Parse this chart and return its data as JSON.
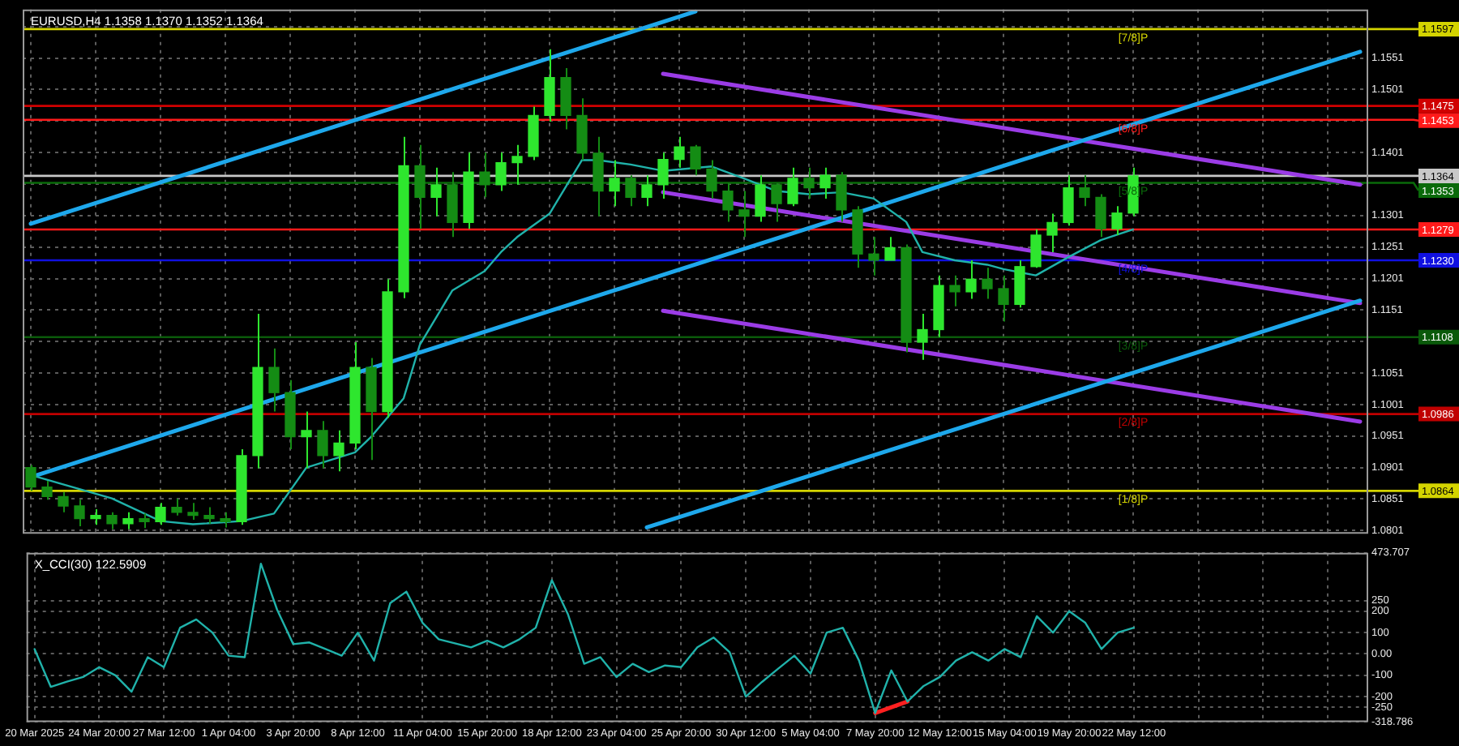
{
  "chart_data": [
    {
      "type": "candlestick",
      "title": "EURUSD,H4 1.1358 1.1370 1.1352 1.1364",
      "categories": [
        "20 Mar 2025",
        null,
        null,
        null,
        "24 Mar 20:00",
        null,
        null,
        null,
        "27 Mar 12:00",
        null,
        null,
        null,
        "1 Apr 04:00",
        null,
        null,
        null,
        "3 Apr 20:00",
        null,
        null,
        null,
        "8 Apr 12:00",
        null,
        null,
        null,
        "11 Apr 04:00",
        null,
        null,
        null,
        "15 Apr 20:00",
        null,
        null,
        null,
        "18 Apr 12:00",
        null,
        null,
        null,
        "23 Apr 04:00",
        null,
        null,
        null,
        "25 Apr 20:00",
        null,
        null,
        null,
        "30 Apr 12:00",
        null,
        null,
        null,
        "5 May 04:00",
        null,
        null,
        null,
        "7 May 20:00",
        null,
        null,
        null,
        "12 May 12:00",
        null,
        null,
        null,
        "15 May 04:00",
        null,
        null,
        null,
        "19 May 20:00",
        null,
        null,
        null,
        "22 May 12:00",
        null,
        null,
        null,
        null,
        null,
        null,
        null,
        null,
        null,
        null,
        null,
        null,
        null,
        null
      ],
      "colors": [
        "#148c14",
        "#148c14",
        "#148c14",
        "#148c14",
        "#2ee62e",
        "#148c14",
        "#2ee62e",
        "#148c14",
        "#2ee62e",
        "#148c14",
        "#148c14",
        "#148c14",
        "#148c14",
        "#2ee62e",
        "#2ee62e",
        "#148c14",
        "#148c14",
        "#2ee62e",
        "#148c14",
        "#2ee62e",
        "#2ee62e",
        "#148c14",
        "#2ee62e",
        "#2ee62e",
        "#148c14",
        "#2ee62e",
        "#148c14",
        "#2ee62e",
        "#148c14",
        "#2ee62e",
        "#2ee62e",
        "#2ee62e",
        "#2ee62e",
        "#148c14",
        "#148c14",
        "#148c14",
        "#2ee62e",
        "#148c14",
        "#2ee62e",
        "#2ee62e",
        "#2ee62e",
        "#148c14",
        "#148c14",
        "#148c14",
        "#148c14",
        "#2ee62e",
        "#148c14",
        "#2ee62e",
        "#148c14",
        "#2ee62e",
        "#148c14",
        "#148c14",
        "#148c14",
        "#2ee62e",
        "#148c14",
        "#2ee62e",
        "#2ee62e",
        "#148c14",
        "#2ee62e",
        "#148c14",
        "#148c14",
        "#2ee62e",
        "#2ee62e",
        "#2ee62e",
        "#2ee62e",
        "#148c14",
        "#148c14",
        "#2ee62e",
        "#2ee62e",
        null,
        null,
        null,
        null,
        null,
        null,
        null,
        null,
        null,
        null,
        null,
        null,
        null,
        null
      ],
      "ohlc": [
        [
          1.0901,
          1.0905,
          1.0864,
          1.087
        ],
        [
          1.087,
          1.088,
          1.085,
          1.0855
        ],
        [
          1.0855,
          1.0862,
          1.083,
          1.084
        ],
        [
          1.084,
          1.085,
          1.0808,
          1.082
        ],
        [
          1.082,
          1.0835,
          1.081,
          1.0825
        ],
        [
          1.0825,
          1.083,
          1.0803,
          1.0812
        ],
        [
          1.0812,
          1.083,
          1.0803,
          1.082
        ],
        [
          1.082,
          1.0828,
          1.0805,
          1.0815
        ],
        [
          1.0815,
          1.0845,
          1.081,
          1.0838
        ],
        [
          1.0838,
          1.0852,
          1.0825,
          1.083
        ],
        [
          1.083,
          1.0845,
          1.0818,
          1.0825
        ],
        [
          1.0825,
          1.0838,
          1.0812,
          1.082
        ],
        [
          1.082,
          1.083,
          1.0806,
          1.0815
        ],
        [
          1.0815,
          1.093,
          1.081,
          1.092
        ],
        [
          1.092,
          1.1145,
          1.09,
          1.106
        ],
        [
          1.106,
          1.109,
          1.099,
          1.102
        ],
        [
          1.102,
          1.104,
          1.093,
          1.095
        ],
        [
          1.095,
          1.099,
          1.09,
          1.096
        ],
        [
          1.096,
          1.0975,
          1.09,
          1.092
        ],
        [
          1.092,
          1.096,
          1.0895,
          1.094
        ],
        [
          1.094,
          1.11,
          1.093,
          1.106
        ],
        [
          1.106,
          1.1075,
          1.0913,
          1.099
        ],
        [
          1.099,
          1.12,
          1.098,
          1.118
        ],
        [
          1.118,
          1.1426,
          1.117,
          1.138
        ],
        [
          1.138,
          1.1413,
          1.128,
          1.133
        ],
        [
          1.133,
          1.1377,
          1.13,
          1.135
        ],
        [
          1.135,
          1.137,
          1.1267,
          1.129
        ],
        [
          1.129,
          1.1401,
          1.128,
          1.137
        ],
        [
          1.137,
          1.1401,
          1.133,
          1.135
        ],
        [
          1.135,
          1.1401,
          1.134,
          1.1385
        ],
        [
          1.1385,
          1.1413,
          1.135,
          1.1395
        ],
        [
          1.1395,
          1.1474,
          1.1389,
          1.146
        ],
        [
          1.146,
          1.1565,
          1.145,
          1.152
        ],
        [
          1.152,
          1.1535,
          1.1438,
          1.146
        ],
        [
          1.146,
          1.1487,
          1.1389,
          1.14
        ],
        [
          1.14,
          1.1426,
          1.13,
          1.134
        ],
        [
          1.134,
          1.1389,
          1.1316,
          1.136
        ],
        [
          1.136,
          1.1365,
          1.1316,
          1.133
        ],
        [
          1.133,
          1.1365,
          1.1316,
          1.135
        ],
        [
          1.135,
          1.1401,
          1.1328,
          1.139
        ],
        [
          1.139,
          1.1426,
          1.1377,
          1.141
        ],
        [
          1.141,
          1.1413,
          1.1365,
          1.1375
        ],
        [
          1.1375,
          1.1389,
          1.1328,
          1.134
        ],
        [
          1.134,
          1.1352,
          1.1291,
          1.131
        ],
        [
          1.131,
          1.134,
          1.1267,
          1.13
        ],
        [
          1.13,
          1.1365,
          1.1291,
          1.135
        ],
        [
          1.135,
          1.1352,
          1.1291,
          1.132
        ],
        [
          1.132,
          1.1377,
          1.1316,
          1.136
        ],
        [
          1.136,
          1.1377,
          1.1328,
          1.1345
        ],
        [
          1.1345,
          1.1377,
          1.1328,
          1.1365
        ],
        [
          1.1365,
          1.137,
          1.1291,
          1.131
        ],
        [
          1.131,
          1.1316,
          1.1218,
          1.124
        ],
        [
          1.124,
          1.1267,
          1.1206,
          1.123
        ],
        [
          1.123,
          1.1267,
          1.123,
          1.125
        ],
        [
          1.125,
          1.1255,
          1.1084,
          1.11
        ],
        [
          1.11,
          1.1145,
          1.1072,
          1.112
        ],
        [
          1.112,
          1.1206,
          1.1108,
          1.119
        ],
        [
          1.119,
          1.1206,
          1.1157,
          1.118
        ],
        [
          1.118,
          1.123,
          1.1169,
          1.12
        ],
        [
          1.12,
          1.1218,
          1.1169,
          1.1185
        ],
        [
          1.1185,
          1.1206,
          1.1133,
          1.116
        ],
        [
          1.116,
          1.123,
          1.1155,
          1.122
        ],
        [
          1.122,
          1.1279,
          1.1218,
          1.127
        ],
        [
          1.127,
          1.1304,
          1.1243,
          1.129
        ],
        [
          1.129,
          1.1365,
          1.1285,
          1.1345
        ],
        [
          1.1345,
          1.1365,
          1.1316,
          1.133
        ],
        [
          1.133,
          1.1335,
          1.1267,
          1.128
        ],
        [
          1.128,
          1.1316,
          1.127,
          1.1305
        ],
        [
          1.1305,
          1.1377,
          1.13,
          1.1364
        ],
        null,
        null,
        null,
        null,
        null,
        null,
        null,
        null,
        null,
        null,
        null,
        null,
        null,
        null
      ],
      "series": [
        {
          "type": "line",
          "color": "#20b2aa",
          "values": [
            1.0889,
            null,
            null,
            null,
            null,
            1.0852,
            null,
            null,
            1.0816,
            null,
            1.0811,
            null,
            null,
            1.0816,
            null,
            1.0828,
            null,
            1.0901,
            null,
            null,
            1.0925,
            1.095,
            null,
            1.1011,
            1.1096,
            null,
            1.1182,
            null,
            1.1213,
            1.1243,
            1.1267,
            null,
            1.1304,
            null,
            1.1389,
            1.1389,
            null,
            1.1382,
            null,
            1.1372,
            null,
            null,
            1.1379,
            null,
            1.136,
            null,
            1.134,
            null,
            1.1335,
            null,
            1.1338,
            null,
            1.1328,
            null,
            1.1291,
            1.1243,
            null,
            1.123,
            null,
            1.1223,
            1.1216,
            null,
            1.1206,
            null,
            1.1235,
            null,
            1.1262,
            null,
            1.1279,
            null,
            null,
            null,
            null,
            null,
            null,
            null,
            null,
            null,
            null,
            null,
            null,
            null,
            null
          ]
        },
        {
          "type": "line",
          "color": "#1ea8ec",
          "values": [
            1.1288,
            null,
            null,
            null,
            null,
            null,
            null,
            null,
            null,
            null,
            null,
            null,
            null,
            null,
            null,
            null,
            null,
            null,
            null,
            null,
            null,
            null,
            null,
            null,
            null,
            null,
            null,
            null,
            null,
            null,
            null,
            null,
            null,
            null,
            null,
            null,
            null,
            null,
            null,
            null,
            null,
            1.1625,
            null,
            null,
            null,
            null,
            null,
            null,
            null,
            null,
            null,
            null,
            null,
            null,
            null,
            null,
            null,
            null,
            null,
            null,
            null,
            null,
            null,
            null,
            null,
            null,
            null,
            null,
            null,
            null,
            null,
            null,
            null,
            null,
            null,
            null,
            null,
            null,
            null,
            null,
            null,
            null,
            null
          ]
        },
        {
          "type": "line",
          "color": "#1ea8ec",
          "values": [
            1.0886,
            null,
            null,
            null,
            null,
            null,
            null,
            null,
            null,
            null,
            null,
            null,
            null,
            null,
            null,
            null,
            null,
            null,
            null,
            null,
            null,
            null,
            null,
            null,
            null,
            null,
            null,
            null,
            null,
            null,
            null,
            null,
            null,
            null,
            null,
            null,
            null,
            null,
            null,
            null,
            null,
            null,
            null,
            null,
            null,
            null,
            null,
            null,
            null,
            null,
            null,
            null,
            null,
            null,
            null,
            null,
            null,
            null,
            null,
            null,
            null,
            null,
            null,
            null,
            null,
            null,
            null,
            null,
            null,
            null,
            null,
            null,
            null,
            null,
            null,
            null,
            null,
            null,
            null,
            null,
            null,
            null,
            1.1561
          ]
        },
        {
          "type": "line",
          "color": "#1ea8ec",
          "values": [
            null,
            null,
            null,
            null,
            null,
            null,
            null,
            null,
            null,
            null,
            null,
            null,
            null,
            null,
            null,
            null,
            null,
            null,
            null,
            null,
            null,
            null,
            null,
            null,
            null,
            null,
            null,
            null,
            null,
            null,
            null,
            null,
            null,
            null,
            null,
            null,
            null,
            null,
            1.0806,
            null,
            null,
            null,
            null,
            null,
            null,
            null,
            null,
            null,
            null,
            null,
            null,
            null,
            null,
            null,
            null,
            null,
            null,
            null,
            null,
            null,
            null,
            null,
            null,
            null,
            null,
            null,
            null,
            null,
            null,
            null,
            null,
            null,
            null,
            null,
            null,
            null,
            null,
            null,
            null,
            null,
            null,
            null,
            1.1166
          ]
        },
        {
          "type": "line",
          "color": "#9b3ce6",
          "values": [
            null,
            null,
            null,
            null,
            null,
            null,
            null,
            null,
            null,
            null,
            null,
            null,
            null,
            null,
            null,
            null,
            null,
            null,
            null,
            null,
            null,
            null,
            null,
            null,
            null,
            null,
            null,
            null,
            null,
            null,
            null,
            null,
            null,
            null,
            null,
            null,
            null,
            null,
            null,
            1.1526,
            null,
            null,
            null,
            null,
            null,
            null,
            null,
            null,
            null,
            null,
            null,
            null,
            null,
            null,
            null,
            null,
            null,
            null,
            null,
            null,
            null,
            null,
            null,
            null,
            null,
            null,
            null,
            null,
            null,
            null,
            null,
            null,
            null,
            null,
            null,
            null,
            null,
            null,
            null,
            null,
            null,
            null,
            1.135
          ]
        },
        {
          "type": "line",
          "color": "#9b3ce6",
          "values": [
            null,
            null,
            null,
            null,
            null,
            null,
            null,
            null,
            null,
            null,
            null,
            null,
            null,
            null,
            null,
            null,
            null,
            null,
            null,
            null,
            null,
            null,
            null,
            null,
            null,
            null,
            null,
            null,
            null,
            null,
            null,
            null,
            null,
            null,
            null,
            null,
            null,
            null,
            null,
            1.1338,
            null,
            null,
            null,
            null,
            null,
            null,
            null,
            null,
            null,
            null,
            null,
            null,
            null,
            null,
            null,
            null,
            null,
            null,
            null,
            null,
            null,
            null,
            null,
            null,
            null,
            null,
            null,
            null,
            null,
            null,
            null,
            null,
            null,
            null,
            null,
            null,
            null,
            null,
            null,
            null,
            null,
            null,
            1.1162
          ]
        },
        {
          "type": "line",
          "color": "#9b3ce6",
          "values": [
            null,
            null,
            null,
            null,
            null,
            null,
            null,
            null,
            null,
            null,
            null,
            null,
            null,
            null,
            null,
            null,
            null,
            null,
            null,
            null,
            null,
            null,
            null,
            null,
            null,
            null,
            null,
            null,
            null,
            null,
            null,
            null,
            null,
            null,
            null,
            null,
            null,
            null,
            null,
            1.115,
            null,
            null,
            null,
            null,
            null,
            null,
            null,
            null,
            null,
            null,
            null,
            null,
            null,
            null,
            null,
            null,
            null,
            null,
            null,
            null,
            null,
            null,
            null,
            null,
            null,
            null,
            null,
            null,
            null,
            null,
            null,
            null,
            null,
            null,
            null,
            null,
            null,
            null,
            null,
            null,
            null,
            null,
            1.0974
          ]
        }
      ],
      "ylim": [
        1.0796,
        1.1628
      ],
      "yticks": [
        1.0801,
        1.0851,
        1.0901,
        1.0951,
        1.1001,
        1.1051,
        {
          "value": 1.1101,
          "label": null
        },
        1.1151,
        1.1201,
        1.1251,
        1.1301,
        {
          "value": 1.1351,
          "label": null
        },
        1.1401,
        {
          "value": 1.1451,
          "label": null
        },
        1.1501,
        1.1551,
        {
          "value": 1.1601,
          "label": null
        }
      ],
      "ref_lines": [
        {
          "axis": "y",
          "value": 1.1597,
          "label": "1.1597",
          "color": "#d4d400"
        },
        {
          "axis": "y",
          "value": 1.1475,
          "label": "1.1475",
          "color": "#d00000"
        },
        {
          "axis": "y",
          "value": 1.1453,
          "label": "1.1453",
          "color": "#ff1a1a"
        },
        {
          "axis": "y",
          "value": 1.1364,
          "label": "1.1364",
          "color": "#c8c8c8"
        },
        {
          "axis": "y",
          "value": 1.1353,
          "label": "1.1353",
          "color": "#0a6a0a"
        },
        {
          "axis": "y",
          "value": 1.1279,
          "label": "1.1279",
          "color": "#ff1a1a"
        },
        {
          "axis": "y",
          "value": 1.123,
          "label": "1.1230",
          "color": "#1010e0"
        },
        {
          "axis": "y",
          "value": 1.1108,
          "label": "1.1108",
          "color": "#0a5a0a"
        },
        {
          "axis": "y",
          "value": 1.0986,
          "label": "1.0986",
          "color": "#c00000"
        },
        {
          "axis": "y",
          "value": 1.0864,
          "label": "1.0864",
          "color": "#d4d400"
        }
      ],
      "annotations": [
        {
          "text": "[7/8]P",
          "x": "22 May 12:00",
          "y": 1.1597
        },
        {
          "text": "[6/8]P",
          "x": "22 May 12:00",
          "y": 1.1453
        },
        {
          "text": "[5/8]P",
          "x": "22 May 12:00",
          "y": 1.1353
        },
        {
          "text": "[4/8]P",
          "x": "22 May 12:00",
          "y": 1.123
        },
        {
          "text": "[3/8]P",
          "x": "22 May 12:00",
          "y": 1.1108
        },
        {
          "text": "[2/8]P",
          "x": "22 May 12:00",
          "y": 1.0986
        },
        {
          "text": "[1/8]P",
          "x": "22 May 12:00",
          "y": 1.0864
        }
      ],
      "grid": true,
      "tick_labels": "y"
    },
    {
      "type": "line",
      "title": "X_CCI(30) 122.5909",
      "categories": [
        "20 Mar 2025",
        null,
        null,
        null,
        "24 Mar 20:00",
        null,
        null,
        null,
        "27 Mar 12:00",
        null,
        null,
        null,
        "1 Apr 04:00",
        null,
        null,
        null,
        "3 Apr 20:00",
        null,
        null,
        null,
        "8 Apr 12:00",
        null,
        null,
        null,
        "11 Apr 04:00",
        null,
        null,
        null,
        "15 Apr 20:00",
        null,
        null,
        null,
        "18 Apr 12:00",
        null,
        null,
        null,
        "23 Apr 04:00",
        null,
        null,
        null,
        "25 Apr 20:00",
        null,
        null,
        null,
        "30 Apr 12:00",
        null,
        null,
        null,
        "5 May 04:00",
        null,
        null,
        null,
        "7 May 20:00",
        null,
        null,
        null,
        "12 May 12:00",
        null,
        null,
        null,
        "15 May 04:00",
        null,
        null,
        null,
        "19 May 20:00",
        null,
        null,
        null,
        "22 May 12:00",
        null,
        null,
        null,
        null,
        null,
        null,
        null,
        null,
        null,
        null,
        null,
        null,
        null,
        null
      ],
      "color": "#20b2aa",
      "values": [
        23,
        -154,
        -130,
        -108,
        -62,
        -100,
        -177,
        -15,
        -62,
        123,
        162,
        100,
        -8,
        -15,
        423,
        208,
        46,
        54,
        23,
        -8,
        100,
        -31,
        238,
        292,
        146,
        69,
        50,
        31,
        62,
        31,
        69,
        123,
        346,
        185,
        -46,
        -15,
        -108,
        -46,
        -85,
        -54,
        -62,
        31,
        77,
        8,
        -200,
        -131,
        -69,
        -8,
        -92,
        100,
        123,
        -31,
        -277,
        -77,
        -223,
        -150,
        -108,
        -31,
        8,
        -31,
        23,
        -15,
        177,
        100,
        200,
        146,
        23,
        100,
        123,
        null,
        null,
        null,
        null,
        null,
        null,
        null,
        null,
        null,
        null,
        null,
        null,
        null,
        null
      ],
      "series": [
        {
          "type": "line",
          "color": "#ff2020",
          "values": [
            null,
            null,
            null,
            null,
            null,
            null,
            null,
            null,
            null,
            null,
            null,
            null,
            null,
            null,
            null,
            null,
            null,
            null,
            null,
            null,
            null,
            null,
            null,
            null,
            null,
            null,
            null,
            null,
            null,
            null,
            null,
            null,
            null,
            null,
            null,
            null,
            null,
            null,
            null,
            null,
            null,
            null,
            null,
            null,
            null,
            null,
            null,
            null,
            null,
            null,
            null,
            null,
            -277,
            null,
            -223,
            null,
            null,
            null,
            null,
            null,
            null,
            null,
            null,
            null,
            null,
            null,
            null,
            null,
            null,
            null,
            null,
            null,
            null,
            null,
            null,
            null,
            null,
            null,
            null,
            null,
            null,
            null,
            null
          ]
        }
      ],
      "ylim": [
        -318.786,
        473.707
      ],
      "yticks": [
        473.707,
        250,
        200,
        100,
        {
          "value": 0,
          "label": "0.00"
        },
        -100,
        -200,
        -250,
        -318.786
      ],
      "grid": true
    }
  ]
}
